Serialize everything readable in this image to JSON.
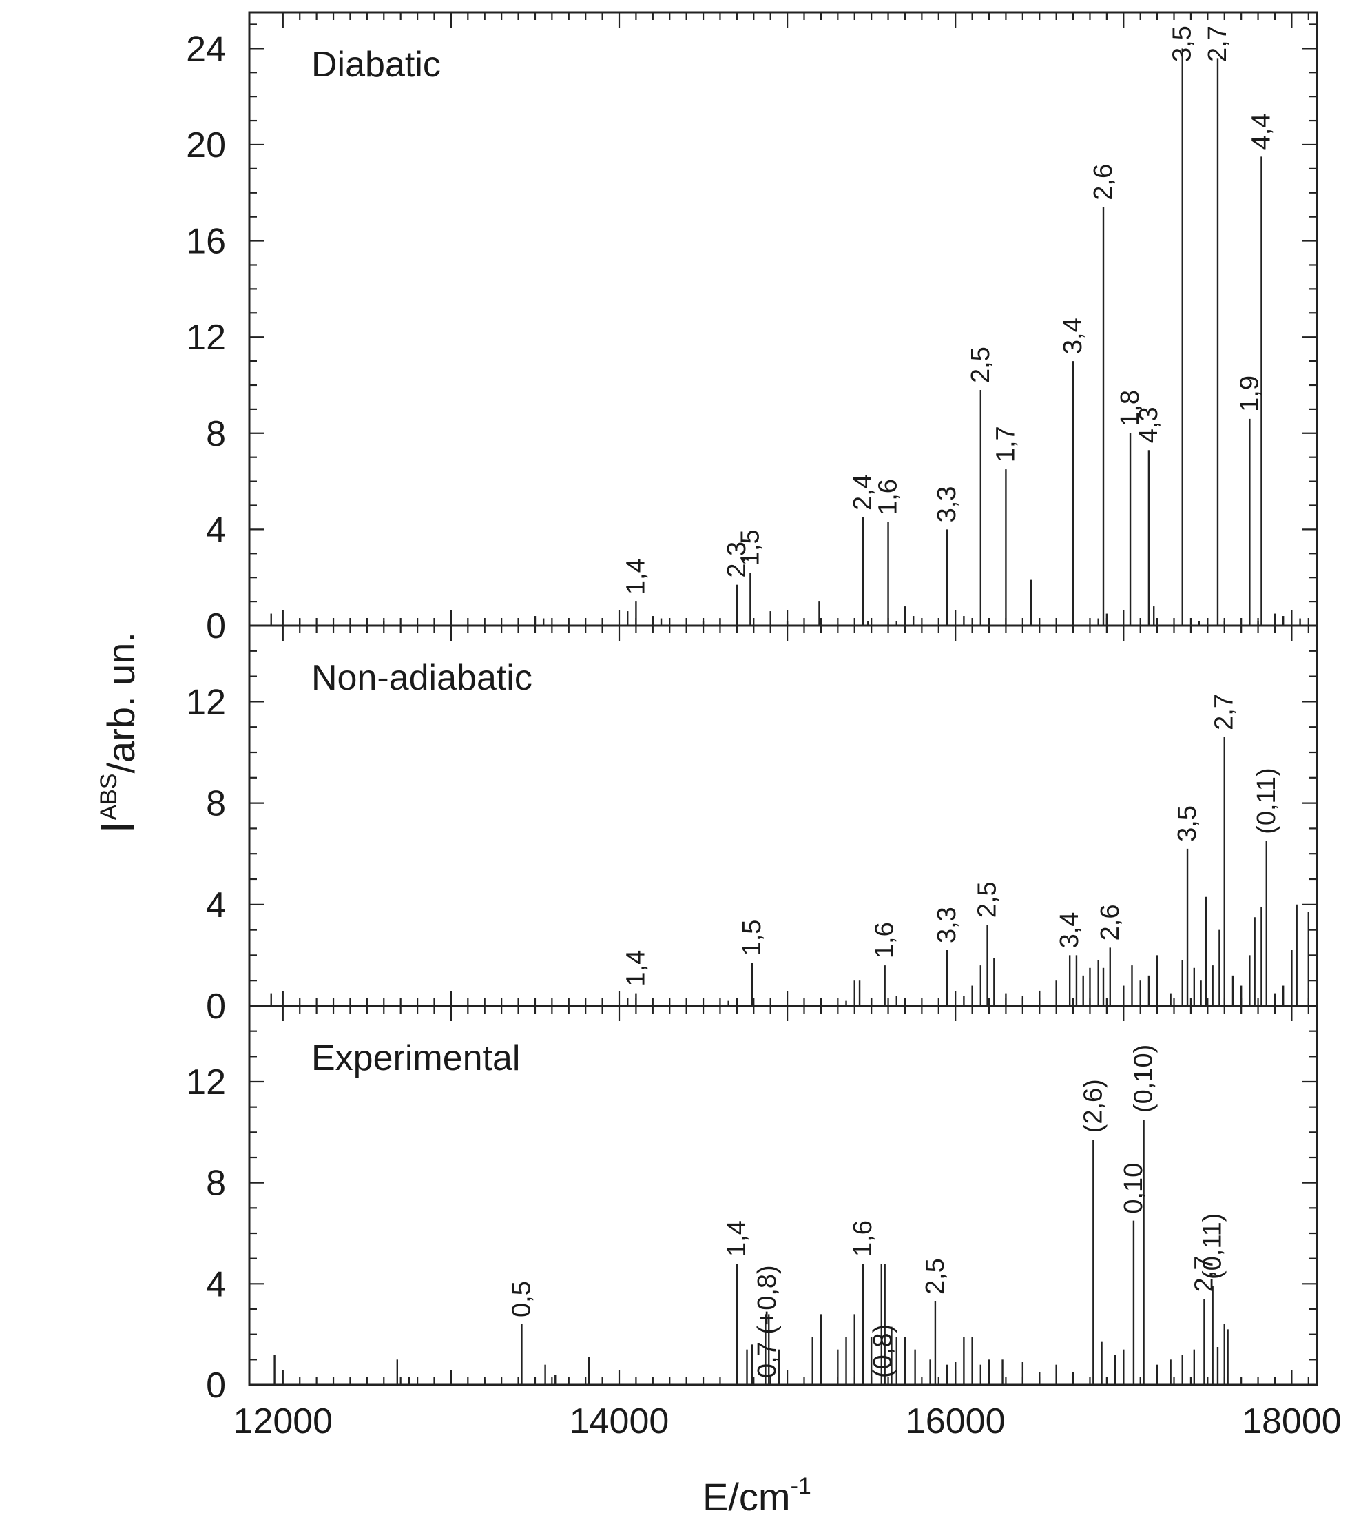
{
  "chart_data": {
    "type": "bar",
    "xlabel": "E/cm",
    "xlabel_sup": "-1",
    "ylabel_main": "I",
    "ylabel_sup": "ABS",
    "ylabel_tail": "/arb. un.",
    "xlim": [
      11800,
      18150
    ],
    "xticks": [
      "12000",
      "14000",
      "16000",
      "18000"
    ],
    "grid": false,
    "panels": [
      {
        "title": "Diabatic",
        "ylim": [
          0,
          25.5
        ],
        "yticks": [
          "0",
          "4",
          "8",
          "12",
          "16",
          "20",
          "24"
        ],
        "sticks": [
          [
            11930,
            0.5
          ],
          [
            12100,
            0.3
          ],
          [
            12600,
            0.2
          ],
          [
            13500,
            0.4
          ],
          [
            13550,
            0.3
          ],
          [
            14050,
            0.6
          ],
          [
            14100,
            1.0
          ],
          [
            14200,
            0.4
          ],
          [
            14250,
            0.3
          ],
          [
            14500,
            0.2
          ],
          [
            14600,
            0.3
          ],
          [
            14700,
            1.7
          ],
          [
            14780,
            2.2
          ],
          [
            14900,
            0.6
          ],
          [
            15000,
            0.2
          ],
          [
            15190,
            1.0
          ],
          [
            15450,
            4.5
          ],
          [
            15480,
            0.2
          ],
          [
            15600,
            4.3
          ],
          [
            15650,
            0.2
          ],
          [
            15700,
            0.8
          ],
          [
            15750,
            0.4
          ],
          [
            15950,
            4.0
          ],
          [
            16050,
            0.4
          ],
          [
            16150,
            9.8
          ],
          [
            16300,
            6.5
          ],
          [
            16450,
            1.9
          ],
          [
            16700,
            11.0
          ],
          [
            16850,
            0.3
          ],
          [
            16880,
            17.4
          ],
          [
            16900,
            0.5
          ],
          [
            17040,
            8.0
          ],
          [
            17150,
            7.3
          ],
          [
            17180,
            0.8
          ],
          [
            17350,
            24.0
          ],
          [
            17450,
            0.2
          ],
          [
            17560,
            23.6
          ],
          [
            17600,
            0.2
          ],
          [
            17750,
            8.6
          ],
          [
            17800,
            0.2
          ],
          [
            17820,
            19.5
          ],
          [
            17900,
            0.5
          ],
          [
            17950,
            0.4
          ],
          [
            18050,
            0.3
          ]
        ],
        "labels": [
          {
            "text": "1,4",
            "x": 14100
          },
          {
            "text": "2,3",
            "x": 14700
          },
          {
            "text": "1,5",
            "x": 14780
          },
          {
            "text": "2,4",
            "x": 15450
          },
          {
            "text": "1,6",
            "x": 15600
          },
          {
            "text": "3,3",
            "x": 15950
          },
          {
            "text": "2,5",
            "x": 16150
          },
          {
            "text": "1,7",
            "x": 16300
          },
          {
            "text": "3,4",
            "x": 16700
          },
          {
            "text": "2,6",
            "x": 16880
          },
          {
            "text": "1,8",
            "x": 17040
          },
          {
            "text": "4,3",
            "x": 17150
          },
          {
            "text": "3,5",
            "x": 17350
          },
          {
            "text": "2,7",
            "x": 17560
          },
          {
            "text": "1,9",
            "x": 17750
          },
          {
            "text": "4,4",
            "x": 17820
          }
        ]
      },
      {
        "title": "Non-adiabatic",
        "ylim": [
          0,
          15
        ],
        "yticks": [
          "0",
          "4",
          "8",
          "12"
        ],
        "sticks": [
          [
            11930,
            0.5
          ],
          [
            14050,
            0.3
          ],
          [
            14100,
            0.5
          ],
          [
            14650,
            0.2
          ],
          [
            14700,
            0.3
          ],
          [
            14790,
            1.7
          ],
          [
            15350,
            0.2
          ],
          [
            15400,
            1.0
          ],
          [
            15430,
            1.0
          ],
          [
            15500,
            0.3
          ],
          [
            15580,
            1.6
          ],
          [
            15650,
            0.4
          ],
          [
            15700,
            0.3
          ],
          [
            15950,
            2.2
          ],
          [
            16050,
            0.4
          ],
          [
            16100,
            0.8
          ],
          [
            16150,
            1.6
          ],
          [
            16190,
            3.2
          ],
          [
            16230,
            1.9
          ],
          [
            16300,
            0.5
          ],
          [
            16400,
            0.4
          ],
          [
            16500,
            0.6
          ],
          [
            16600,
            1.0
          ],
          [
            16680,
            2.0
          ],
          [
            16720,
            2.0
          ],
          [
            16760,
            1.2
          ],
          [
            16800,
            1.5
          ],
          [
            16850,
            1.8
          ],
          [
            16880,
            1.5
          ],
          [
            16920,
            2.3
          ],
          [
            17000,
            0.8
          ],
          [
            17050,
            1.6
          ],
          [
            17100,
            1.0
          ],
          [
            17150,
            1.2
          ],
          [
            17200,
            2.0
          ],
          [
            17280,
            0.5
          ],
          [
            17350,
            1.8
          ],
          [
            17380,
            6.2
          ],
          [
            17420,
            1.5
          ],
          [
            17460,
            1.0
          ],
          [
            17490,
            4.3
          ],
          [
            17530,
            1.6
          ],
          [
            17570,
            3.0
          ],
          [
            17600,
            10.6
          ],
          [
            17650,
            1.2
          ],
          [
            17700,
            0.8
          ],
          [
            17750,
            2.0
          ],
          [
            17780,
            3.5
          ],
          [
            17820,
            3.9
          ],
          [
            17850,
            6.5
          ],
          [
            17900,
            0.5
          ],
          [
            17950,
            0.8
          ],
          [
            18000,
            2.2
          ],
          [
            18030,
            4.0
          ],
          [
            18100,
            3.7
          ]
        ],
        "labels": [
          {
            "text": "1,4",
            "x": 14100
          },
          {
            "text": "1,5",
            "x": 14790
          },
          {
            "text": "1,6",
            "x": 15580
          },
          {
            "text": "3,3",
            "x": 15950
          },
          {
            "text": "2,5",
            "x": 16190
          },
          {
            "text": "3,4",
            "x": 16680
          },
          {
            "text": "2,6",
            "x": 16920
          },
          {
            "text": "3,5",
            "x": 17380
          },
          {
            "text": "2,7",
            "x": 17600
          },
          {
            "text": "(0,11)",
            "x": 17850
          }
        ]
      },
      {
        "title": "Experimental",
        "ylim": [
          0,
          15
        ],
        "yticks": [
          "0",
          "4",
          "8",
          "12"
        ],
        "sticks": [
          [
            11950,
            1.2
          ],
          [
            12680,
            1.0
          ],
          [
            12750,
            0.3
          ],
          [
            13200,
            0.2
          ],
          [
            13420,
            2.4
          ],
          [
            13560,
            0.8
          ],
          [
            13620,
            0.4
          ],
          [
            13820,
            1.1
          ],
          [
            14700,
            4.8
          ],
          [
            14760,
            1.4
          ],
          [
            14790,
            1.6
          ],
          [
            14870,
            2.8
          ],
          [
            14890,
            2.8
          ],
          [
            14950,
            1.4
          ],
          [
            15150,
            1.9
          ],
          [
            15200,
            2.8
          ],
          [
            15300,
            1.4
          ],
          [
            15350,
            1.9
          ],
          [
            15400,
            2.8
          ],
          [
            15450,
            4.8
          ],
          [
            15500,
            1.9
          ],
          [
            15560,
            4.8
          ],
          [
            15580,
            4.8
          ],
          [
            15620,
            2.3
          ],
          [
            15650,
            1.9
          ],
          [
            15700,
            1.9
          ],
          [
            15760,
            1.4
          ],
          [
            15850,
            1.0
          ],
          [
            15880,
            3.3
          ],
          [
            15950,
            0.8
          ],
          [
            16000,
            0.9
          ],
          [
            16050,
            1.9
          ],
          [
            16100,
            1.9
          ],
          [
            16150,
            0.8
          ],
          [
            16200,
            1.0
          ],
          [
            16280,
            1.0
          ],
          [
            16400,
            0.9
          ],
          [
            16500,
            0.5
          ],
          [
            16600,
            0.8
          ],
          [
            16700,
            0.5
          ],
          [
            16820,
            9.7
          ],
          [
            16870,
            1.7
          ],
          [
            16950,
            1.2
          ],
          [
            17000,
            1.4
          ],
          [
            17060,
            6.5
          ],
          [
            17120,
            10.5
          ],
          [
            17200,
            0.8
          ],
          [
            17280,
            1.0
          ],
          [
            17350,
            1.2
          ],
          [
            17420,
            1.4
          ],
          [
            17480,
            3.4
          ],
          [
            17530,
            3.9
          ],
          [
            17560,
            1.5
          ],
          [
            17600,
            2.4
          ],
          [
            17620,
            2.2
          ]
        ],
        "labels": [
          {
            "text": "0,5",
            "x": 13420
          },
          {
            "text": "1,4",
            "x": 14700
          },
          {
            "text": "0,7 (+0,8)",
            "x": 14880
          },
          {
            "text": "1,6",
            "x": 15450
          },
          {
            "text": "(0,8)",
            "x": 15570
          },
          {
            "text": "2,5",
            "x": 15880
          },
          {
            "text": "(2,6)",
            "x": 16820
          },
          {
            "text": "0,10",
            "x": 17060
          },
          {
            "text": "(0,10)",
            "x": 17120
          },
          {
            "text": "2,7",
            "x": 17480
          },
          {
            "text": "(0,11)",
            "x": 17530
          }
        ]
      }
    ]
  }
}
